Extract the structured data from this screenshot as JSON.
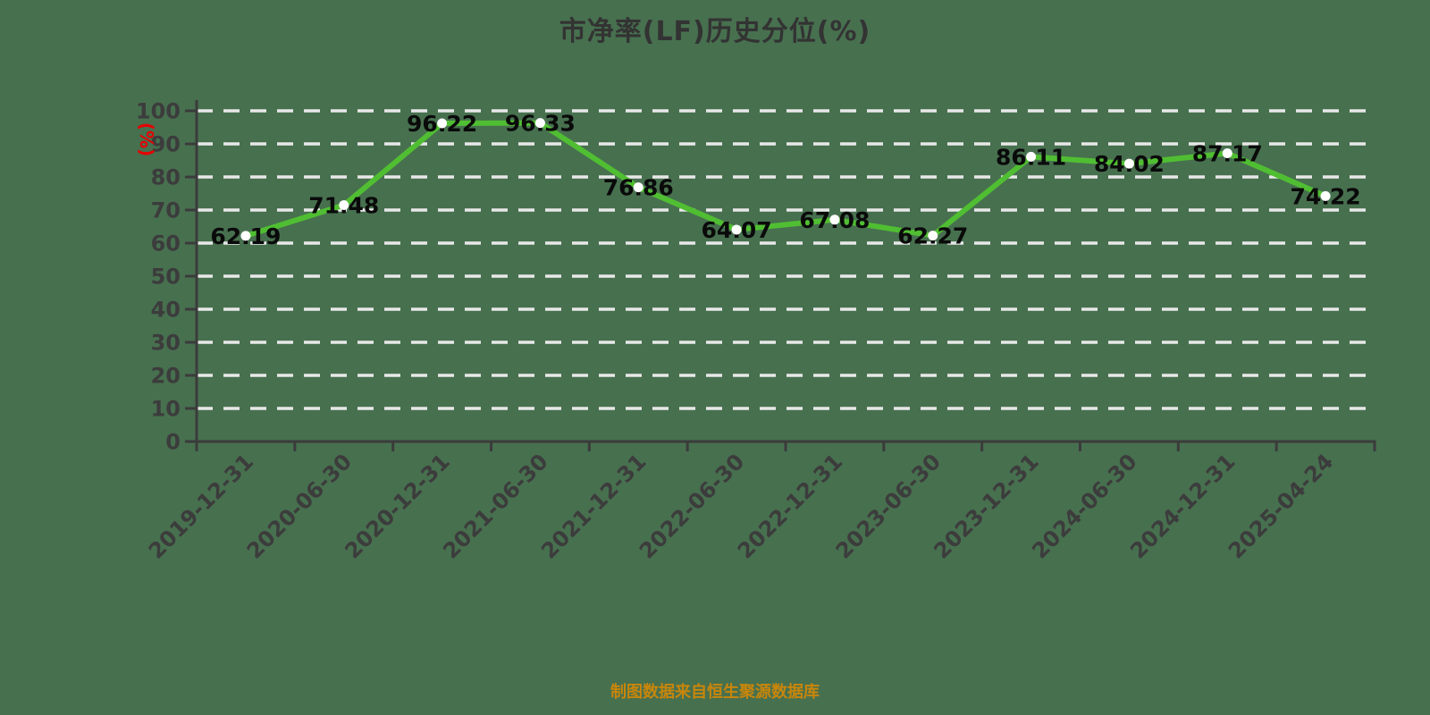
{
  "header": {
    "title": "市净率(LF)历史分位(%)"
  },
  "footer": {
    "source_note": "制图数据来自恒生聚源数据库"
  },
  "chart_data": {
    "type": "line",
    "title": "市净率(LF)历史分位(%)",
    "xlabel": "",
    "ylabel": "(%)",
    "categories": [
      "2019-12-31",
      "2020-06-30",
      "2020-12-31",
      "2021-06-30",
      "2021-12-31",
      "2022-06-30",
      "2022-12-31",
      "2023-06-30",
      "2023-12-31",
      "2024-06-30",
      "2024-12-31",
      "2025-04-24"
    ],
    "series": [
      {
        "name": "市净率(LF)历史分位",
        "values": [
          62.19,
          71.48,
          96.22,
          96.33,
          76.86,
          64.07,
          67.08,
          62.27,
          86.11,
          84.02,
          87.17,
          74.22
        ]
      }
    ],
    "point_labels": [
      "62.19",
      "71.48",
      "96.22",
      "96.33",
      "76.86",
      "64.07",
      "67.08",
      "62.27",
      "86.11",
      "84.02",
      "87.17",
      "74.22"
    ],
    "ylim": [
      0,
      100
    ],
    "ytick_interval": 10,
    "yticks": [
      0,
      10,
      20,
      30,
      40,
      50,
      60,
      70,
      80,
      90,
      100
    ],
    "grid": "horizontal-dashed",
    "legend": "none",
    "colors": {
      "background": "#47704F",
      "line": "#50BE32",
      "marker_fill": "#FFFFFF",
      "grid": "#E8E8E8",
      "axis": "#3B3B3B",
      "tick_label": "#3C3C3C",
      "point_label": "#0A0A0A",
      "ylabel": "#E60000",
      "title": "#333333",
      "source_note": "#C8860B"
    }
  }
}
